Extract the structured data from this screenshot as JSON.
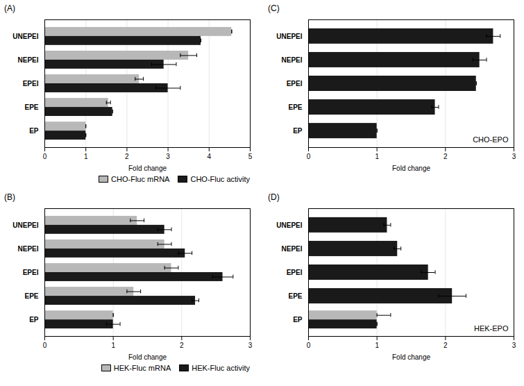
{
  "chart_data": [
    {
      "type": "bar",
      "orientation": "horizontal",
      "title": "(A)",
      "categories": [
        "EP",
        "EPE",
        "EPEI",
        "NEPEI",
        "UNEPEI"
      ],
      "series": [
        {
          "name": "CHO-Fluc mRNA",
          "color": "#b8b8b8",
          "values": [
            1.0,
            1.55,
            2.3,
            3.5,
            4.55
          ],
          "errors": [
            0.0,
            0.05,
            0.1,
            0.2,
            0.0
          ]
        },
        {
          "name": "CHO-Fluc activity",
          "color": "#1a1a1a",
          "values": [
            1.0,
            1.65,
            3.0,
            2.9,
            3.8
          ],
          "errors": [
            0.0,
            0.0,
            0.3,
            0.3,
            0.0
          ]
        }
      ],
      "xlabel": "Fold change",
      "xlim": [
        0,
        5
      ],
      "xticks": [
        0,
        1,
        2,
        3,
        4,
        5
      ],
      "grid": true,
      "legend": "lower right"
    },
    {
      "type": "bar",
      "orientation": "horizontal",
      "title": "(C)",
      "categories": [
        "EP",
        "EPE",
        "EPEI",
        "NEPEI",
        "UNEPEI"
      ],
      "series": [
        {
          "color": "#1a1a1a",
          "values": [
            1.0,
            1.85,
            2.45,
            2.5,
            2.7
          ],
          "errors": [
            0.0,
            0.05,
            0.0,
            0.1,
            0.1
          ]
        }
      ],
      "annotation": "CHO-EPO",
      "xlabel": "Fold change",
      "xlim": [
        0,
        3
      ],
      "xticks": [
        0,
        1,
        2,
        3
      ],
      "grid": true
    },
    {
      "type": "bar",
      "orientation": "horizontal",
      "title": "(B)",
      "categories": [
        "EP",
        "EPE",
        "EPEI",
        "NEPEI",
        "UNEPEI"
      ],
      "series": [
        {
          "name": "HEK-Fluc mRNA",
          "color": "#b8b8b8",
          "values": [
            1.0,
            1.3,
            1.85,
            1.75,
            1.35
          ],
          "errors": [
            0.0,
            0.1,
            0.1,
            0.1,
            0.1
          ]
        },
        {
          "name": "HEK-Fluc activity",
          "color": "#1a1a1a",
          "values": [
            1.0,
            2.2,
            2.6,
            2.05,
            1.75
          ],
          "errors": [
            0.1,
            0.05,
            0.15,
            0.1,
            0.1
          ]
        }
      ],
      "xlabel": "Fold change",
      "xlim": [
        0,
        3
      ],
      "xticks": [
        0,
        1,
        2,
        3
      ],
      "grid": true,
      "legend": "lower right"
    },
    {
      "type": "bar",
      "orientation": "horizontal",
      "title": "(D)",
      "categories": [
        "EP",
        "EPE",
        "EPEI",
        "NEPEI",
        "UNEPEI"
      ],
      "series": [
        {
          "color": "#b8b8b8",
          "values": [
            1.0,
            null,
            null,
            null,
            null
          ],
          "errors_minus": [
            0.0,
            null,
            null,
            null,
            null
          ],
          "errors_plus": [
            0.2,
            null,
            null,
            null,
            null
          ]
        },
        {
          "color": "#1a1a1a",
          "values": [
            1.0,
            2.1,
            1.75,
            1.3,
            1.15
          ],
          "errors": [
            0.0,
            0.2,
            0.1,
            0.05,
            0.05
          ]
        }
      ],
      "annotation": "HEK-EPO",
      "xlabel": "Fold change",
      "xlim": [
        0,
        3
      ],
      "xticks": [
        0,
        1,
        2,
        3
      ],
      "grid": true
    }
  ]
}
